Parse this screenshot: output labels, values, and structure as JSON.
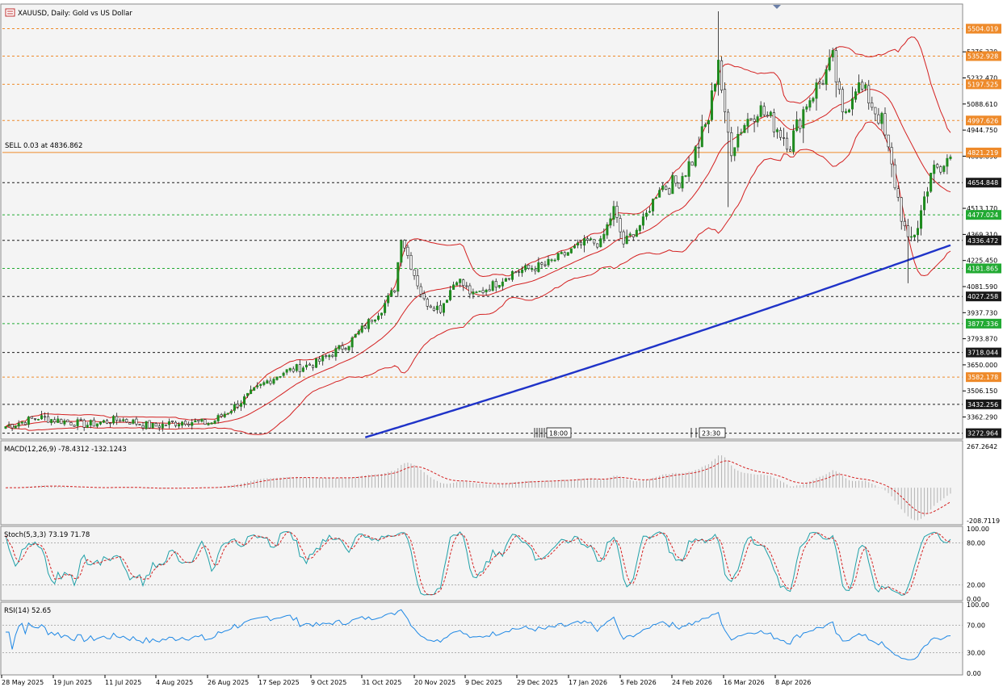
{
  "chart_data": {
    "type": "candlestick",
    "symbol": "XAUUSD",
    "title": "XAUUSD, Daily:  Gold vs US Dollar",
    "trade_label": "SELL 0.03 at 4836.862",
    "x_labels": [
      "28 May 2025",
      "19 Jun 2025",
      "11 Jul 2025",
      "4 Aug 2025",
      "26 Aug 2025",
      "17 Sep 2025",
      "9 Oct 2025",
      "31 Oct 2025",
      "20 Nov 2025",
      "9 Dec 2025",
      "29 Dec 2025",
      "17 Jan 2026",
      "5 Feb 2026",
      "24 Feb 2026",
      "16 Mar 2026",
      "8 Apr 2026"
    ],
    "time_markers": [
      "18:00",
      "23:30"
    ],
    "price_axis": {
      "ylim": [
        3240,
        5640
      ],
      "ticks": [
        "5376.330",
        "5232.470",
        "5088.610",
        "4944.750",
        "4800.890",
        "4513.170",
        "4369.310",
        "4225.450",
        "4081.590",
        "3937.730",
        "3793.870",
        "3650.000",
        "3506.150",
        "3362.290"
      ]
    },
    "levels": [
      {
        "price": "5504.019",
        "kind": "orange",
        "style": "dashed"
      },
      {
        "price": "5352.928",
        "kind": "orange",
        "style": "dashed"
      },
      {
        "price": "5197.525",
        "kind": "orange",
        "style": "dashed"
      },
      {
        "price": "4997.626",
        "kind": "orange",
        "style": "dashed"
      },
      {
        "price": "4821.219",
        "kind": "orange",
        "style": "solid"
      },
      {
        "price": "4654.848",
        "kind": "black",
        "style": "dashed"
      },
      {
        "price": "4477.024",
        "kind": "green",
        "style": "dashed"
      },
      {
        "price": "4336.472",
        "kind": "black",
        "style": "dashed"
      },
      {
        "price": "4181.865",
        "kind": "green",
        "style": "dashed"
      },
      {
        "price": "4027.258",
        "kind": "black",
        "style": "dashed"
      },
      {
        "price": "3877.336",
        "kind": "green",
        "style": "dashed"
      },
      {
        "price": "3718.044",
        "kind": "black",
        "style": "dashed"
      },
      {
        "price": "3582.178",
        "kind": "orange",
        "style": "dashed"
      },
      {
        "price": "3432.256",
        "kind": "black",
        "style": "dashed"
      },
      {
        "price": "3272.964",
        "kind": "black",
        "style": "dashed"
      }
    ],
    "anchors": [
      [
        0,
        3310
      ],
      [
        10,
        3360
      ],
      [
        25,
        3320
      ],
      [
        35,
        3350
      ],
      [
        45,
        3310
      ],
      [
        55,
        3340
      ],
      [
        60,
        3330
      ],
      [
        63,
        3330
      ],
      [
        70,
        3420
      ],
      [
        80,
        3560
      ],
      [
        85,
        3610
      ],
      [
        95,
        3660
      ],
      [
        105,
        3770
      ],
      [
        115,
        3960
      ],
      [
        119,
        4070
      ],
      [
        121,
        4360
      ],
      [
        124,
        4200
      ],
      [
        128,
        4000
      ],
      [
        133,
        3960
      ],
      [
        138,
        4130
      ],
      [
        143,
        4030
      ],
      [
        150,
        4100
      ],
      [
        155,
        4160
      ],
      [
        165,
        4200
      ],
      [
        170,
        4250
      ],
      [
        178,
        4330
      ],
      [
        182,
        4320
      ],
      [
        186,
        4510
      ],
      [
        189,
        4320
      ],
      [
        195,
        4440
      ],
      [
        200,
        4630
      ],
      [
        205,
        4650
      ],
      [
        210,
        4780
      ],
      [
        215,
        5010
      ],
      [
        218,
        5350
      ],
      [
        220,
        5000
      ],
      [
        222,
        4850
      ],
      [
        225,
        4960
      ],
      [
        230,
        5070
      ],
      [
        235,
        4980
      ],
      [
        240,
        4870
      ],
      [
        245,
        5100
      ],
      [
        250,
        5230
      ],
      [
        253,
        5330
      ],
      [
        256,
        5010
      ],
      [
        260,
        5200
      ],
      [
        264,
        5120
      ],
      [
        268,
        4990
      ],
      [
        272,
        4650
      ],
      [
        276,
        4310
      ],
      [
        279,
        4420
      ],
      [
        283,
        4720
      ],
      [
        286,
        4710
      ],
      [
        289,
        4810
      ]
    ],
    "sma": {
      "start": 110,
      "start_value": 3250,
      "end_value": 4310
    },
    "bb_period": 20,
    "macd": {
      "label": "MACD(12,26,9) -78.4312 -132.1243",
      "ylim": [
        -208.7119,
        267.2642
      ],
      "ticks": [
        "267.2642",
        "-208.7119"
      ]
    },
    "stoch": {
      "label": "Stoch(5,3,3) 73.19 71.78",
      "ylim": [
        0,
        100
      ],
      "ticks": [
        "100.00",
        "80.00",
        "20.00",
        "0.00"
      ],
      "guides": [
        80,
        20
      ]
    },
    "rsi": {
      "label": "RSI(14) 52.65",
      "ylim": [
        0,
        100
      ],
      "ticks": [
        "100.00",
        "70.00",
        "30.00",
        "0.00"
      ],
      "guides": [
        70,
        30
      ]
    }
  },
  "colors": {
    "bull": "#1f8a1f",
    "bear": "#1a1a1a",
    "bands": "#d42020",
    "sma": "#1f33c8",
    "orange_level": "#ee8a2a",
    "green_level": "#22aa33",
    "black_level": "#1a1a1a",
    "macd_hist": "#b4b4b4",
    "macd_signal": "#d42020",
    "stoch_main": "#1fa0a8",
    "stoch_signal": "#d42020",
    "rsi": "#1e88e5",
    "panel_bg": "#f4f4f4"
  }
}
